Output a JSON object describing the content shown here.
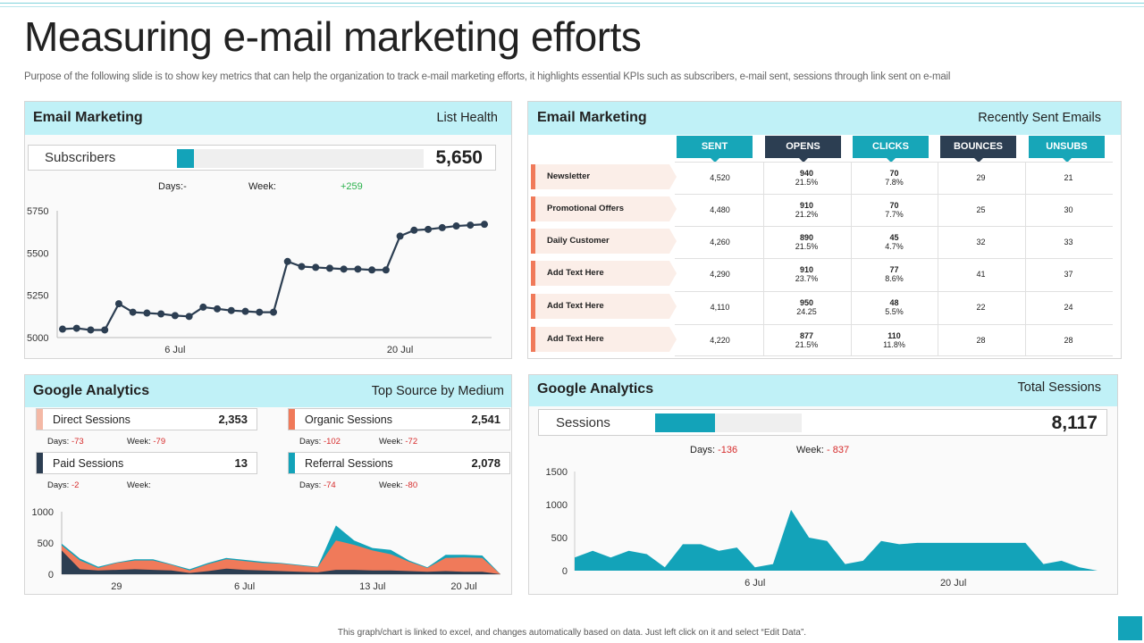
{
  "page": {
    "title": "Measuring e-mail marketing efforts",
    "subtitle": "Purpose of the following slide is to show key metrics that can help the organization to track e-mail marketing efforts, it highlights essential KPIs such as subscribers, e-mail sent, sessions through link sent on e-mail",
    "footer": "This graph/chart is linked to excel, and changes automatically based on data. Just left click on it and select “Edit Data”."
  },
  "colors": {
    "accent": "#13a3b9",
    "header_bg": "#c0f1f7",
    "coral": "#f07a5a",
    "navy": "#2c3e52",
    "green": "#2bb14c",
    "red": "#d62b2b"
  },
  "list_health": {
    "header_left": "Email Marketing",
    "header_right": "List Health",
    "metric_label": "Subscribers",
    "metric_value": "5,650",
    "bar_fill_fraction": 0.07,
    "days_label": "Days:-",
    "days_value": "",
    "week_label": "Week:",
    "week_value": "+259",
    "chart_data": {
      "type": "line",
      "title": "",
      "xlabel": "",
      "ylabel": "",
      "ylim": [
        5000,
        5750
      ],
      "y_ticks": [
        "5750",
        "5500",
        "5250",
        "5000"
      ],
      "x_ticks": [
        {
          "label": "6 Jul",
          "index": 8
        },
        {
          "label": "20 Jul",
          "index": 24
        }
      ],
      "grid": false,
      "series": [
        {
          "values": [
            5050,
            5055,
            5045,
            5045,
            5200,
            5150,
            5145,
            5140,
            5130,
            5125,
            5180,
            5170,
            5160,
            5155,
            5150,
            5150,
            5450,
            5420,
            5415,
            5410,
            5405,
            5405,
            5400,
            5400,
            5600,
            5635,
            5640,
            5650,
            5660,
            5665,
            5670
          ]
        }
      ]
    }
  },
  "recent_emails": {
    "header_left": "Email Marketing",
    "header_right": "Recently Sent Emails",
    "columns": [
      "SENT",
      "OPENS",
      "CLICKS",
      "BOUNCES",
      "UNSUBS"
    ],
    "rows": [
      {
        "label": "Newsletter",
        "sent": "4,520",
        "opens": "940",
        "opens_pct": "21.5%",
        "clicks": "70",
        "clicks_pct": "7.8%",
        "bounces": "29",
        "unsubs": "21"
      },
      {
        "label": "Promotional Offers",
        "sent": "4,480",
        "opens": "910",
        "opens_pct": "21.2%",
        "clicks": "70",
        "clicks_pct": "7.7%",
        "bounces": "25",
        "unsubs": "30"
      },
      {
        "label": "Daily Customer",
        "sent": "4,260",
        "opens": "890",
        "opens_pct": "21.5%",
        "clicks": "45",
        "clicks_pct": "4.7%",
        "bounces": "32",
        "unsubs": "33"
      },
      {
        "label": "Add Text Here",
        "sent": "4,290",
        "opens": "910",
        "opens_pct": "23.7%",
        "clicks": "77",
        "clicks_pct": "8.6%",
        "bounces": "41",
        "unsubs": "37"
      },
      {
        "label": "Add Text Here",
        "sent": "4,110",
        "opens": "950",
        "opens_pct": "24.25",
        "clicks": "48",
        "clicks_pct": "5.5%",
        "bounces": "22",
        "unsubs": "24"
      },
      {
        "label": "Add Text Here",
        "sent": "4,220",
        "opens": "877",
        "opens_pct": "21.5%",
        "clicks": "110",
        "clicks_pct": "11.8%",
        "bounces": "28",
        "unsubs": "28"
      }
    ]
  },
  "top_source": {
    "header_left": "Google Analytics",
    "header_right": "Top Source by Medium",
    "sources": [
      {
        "label": "Direct Sessions",
        "value": "2,353",
        "days_label": "Days:",
        "days_value": "-73",
        "week_label": "Week:",
        "week_value": "-79",
        "color": "#f4b9a6"
      },
      {
        "label": "Organic Sessions",
        "value": "2,541",
        "days_label": "Days:",
        "days_value": "-102",
        "week_label": "Week:",
        "week_value": "-72",
        "color": "#f07a5a"
      },
      {
        "label": "Paid Sessions",
        "value": "13",
        "days_label": "Days:",
        "days_value": "-2",
        "week_label": "Week:",
        "week_value": "",
        "color": "#2c3e52"
      },
      {
        "label": "Referral Sessions",
        "value": "2,078",
        "days_label": "Days:",
        "days_value": "-74",
        "week_label": "Week:",
        "week_value": "-80",
        "color": "#13a3b9"
      }
    ],
    "chart_data": {
      "type": "area",
      "title": "",
      "xlabel": "",
      "ylabel": "",
      "ylim": [
        0,
        1000
      ],
      "y_ticks": [
        "1000",
        "500",
        "0"
      ],
      "x_ticks": [
        {
          "label": "29",
          "index": 3
        },
        {
          "label": "6 Jul",
          "index": 10
        },
        {
          "label": "13 Jul",
          "index": 17
        },
        {
          "label": "20 Jul",
          "index": 22
        }
      ],
      "series": [
        {
          "color": "#13a3b9",
          "values": [
            490,
            250,
            120,
            190,
            240,
            240,
            160,
            80,
            180,
            260,
            230,
            200,
            180,
            150,
            120,
            780,
            540,
            420,
            390,
            220,
            110,
            310,
            310,
            300,
            0
          ]
        },
        {
          "color": "#f07a5a",
          "values": [
            460,
            220,
            100,
            180,
            220,
            220,
            150,
            60,
            160,
            240,
            210,
            180,
            170,
            140,
            110,
            540,
            470,
            380,
            320,
            200,
            100,
            260,
            270,
            260,
            0
          ]
        },
        {
          "color": "#2c3e52",
          "values": [
            380,
            80,
            60,
            70,
            80,
            70,
            60,
            20,
            50,
            90,
            70,
            60,
            50,
            40,
            30,
            70,
            70,
            60,
            60,
            50,
            40,
            50,
            40,
            40,
            0
          ]
        }
      ]
    }
  },
  "total_sessions": {
    "header_left": "Google Analytics",
    "header_right": "Total Sessions",
    "metric_label": "Sessions",
    "metric_value": "8,117",
    "bar_fill_fraction": 0.41,
    "days_label": "Days:",
    "days_value": "-136",
    "week_label": "Week:",
    "week_value": "- 837",
    "chart_data": {
      "type": "area",
      "title": "",
      "xlabel": "",
      "ylabel": "",
      "ylim": [
        0,
        1500
      ],
      "y_ticks": [
        "1500",
        "1000",
        "500",
        "0"
      ],
      "x_ticks": [
        {
          "label": "6 Jul",
          "index": 10
        },
        {
          "label": "20 Jul",
          "index": 21
        }
      ],
      "series": [
        {
          "color": "#13a3b9",
          "values": [
            200,
            300,
            200,
            300,
            250,
            50,
            400,
            400,
            300,
            350,
            50,
            100,
            920,
            500,
            450,
            100,
            150,
            450,
            400,
            420,
            420,
            420,
            420,
            420,
            420,
            420,
            100,
            150,
            50,
            0
          ]
        }
      ]
    }
  }
}
